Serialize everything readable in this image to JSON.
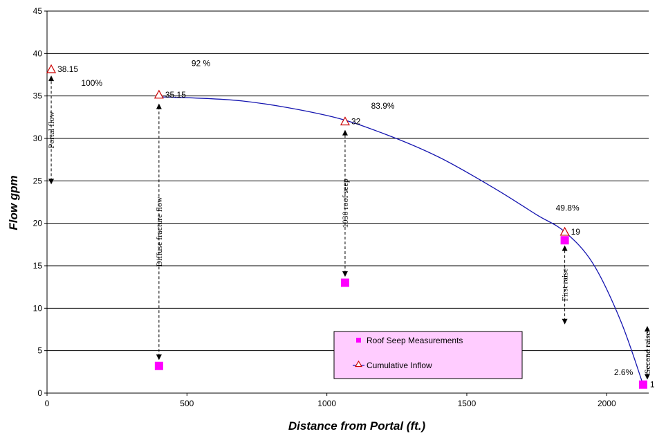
{
  "chart_data": {
    "type": "scatter",
    "xlabel": "Distance from Portal (ft.)",
    "ylabel": "Flow gpm",
    "xlim": [
      0,
      2150
    ],
    "ylim": [
      0,
      45
    ],
    "x_ticks": [
      "0",
      "500",
      "1000",
      "1500",
      "2000"
    ],
    "y_ticks": [
      "0",
      "5",
      "10",
      "15",
      "20",
      "25",
      "30",
      "35",
      "40",
      "45"
    ],
    "grid": "horizontal",
    "legend_position": "bottom-right",
    "series": [
      {
        "name": "Roof Seep Measurements",
        "marker": "square",
        "color": "#FF00FF",
        "points": [
          {
            "x": 400,
            "y": 3.2
          },
          {
            "x": 1065,
            "y": 13
          },
          {
            "x": 1850,
            "y": 18
          },
          {
            "x": 2130,
            "y": 1
          }
        ]
      },
      {
        "name": "Cumulative Inflow",
        "marker": "triangle",
        "color": "#CC0000",
        "line_color": "#1515B0",
        "points": [
          {
            "x": 15,
            "y": 38.15,
            "label": "38.15"
          },
          {
            "x": 400,
            "y": 35.15,
            "label": "35.15"
          },
          {
            "x": 1065,
            "y": 32,
            "label": "32"
          },
          {
            "x": 1850,
            "y": 19,
            "label": "19"
          }
        ]
      }
    ],
    "line_x": [
      400,
      700,
      1000,
      1200,
      1400,
      1600,
      1750,
      1850,
      1950,
      2050,
      2130
    ],
    "line_y": [
      34.9,
      34.4,
      32.7,
      30.6,
      27.8,
      24.1,
      21.0,
      19.0,
      15.3,
      8.5,
      1.0
    ],
    "percent_labels": [
      {
        "text": "100%",
        "x": 160,
        "y": 36.2
      },
      {
        "text": "92 %",
        "x": 550,
        "y": 38.5
      },
      {
        "text": "83.9%",
        "x": 1200,
        "y": 33.5
      },
      {
        "text": "49.8%",
        "x": 1860,
        "y": 21.5
      },
      {
        "text": "2.6%",
        "x": 2060,
        "y": 2.1
      }
    ],
    "arrow_annotations": [
      {
        "text": "Portal flow",
        "x": 15,
        "y_from": 25,
        "y_to": 37
      },
      {
        "text": "Diffuse fracture flow",
        "x": 400,
        "y_from": 4.3,
        "y_to": 33.7
      },
      {
        "text": "1030 roof seep",
        "x": 1065,
        "y_from": 14.1,
        "y_to": 30.6
      },
      {
        "text": "First raise",
        "x": 1850,
        "y_from": 8.5,
        "y_to": 17
      },
      {
        "text": "Second raise",
        "x": 2145,
        "y_from": 2,
        "y_to": 7.5
      }
    ],
    "edge_label": "1"
  }
}
